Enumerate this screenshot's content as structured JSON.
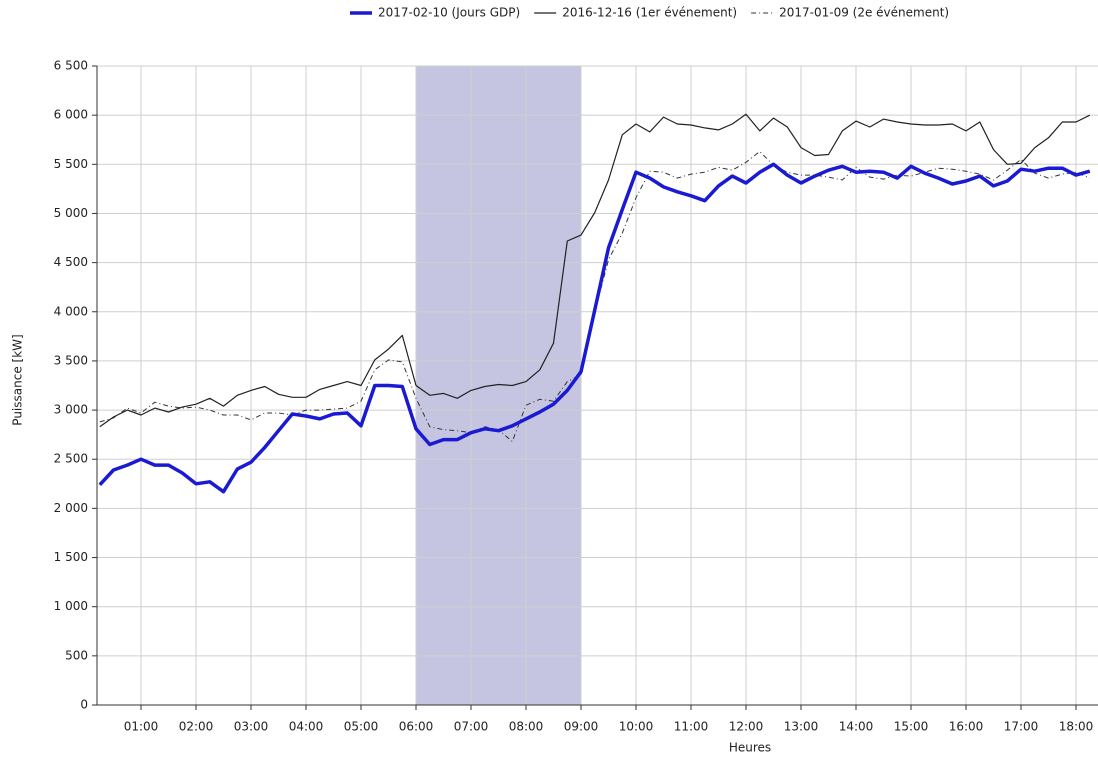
{
  "chart_data": {
    "type": "line",
    "x_label": "Heures",
    "y_label": "Puissance [kW]",
    "x": [
      0.25,
      0.5,
      0.75,
      1,
      1.25,
      1.5,
      1.75,
      2,
      2.25,
      2.5,
      2.75,
      3,
      3.25,
      3.5,
      3.75,
      4,
      4.25,
      4.5,
      4.75,
      5,
      5.25,
      5.5,
      5.75,
      6,
      6.25,
      6.5,
      6.75,
      7,
      7.25,
      7.5,
      7.75,
      8,
      8.25,
      8.5,
      8.75,
      9,
      9.25,
      9.5,
      9.75,
      10,
      10.25,
      10.5,
      10.75,
      11,
      11.25,
      11.5,
      11.75,
      12,
      12.25,
      12.5,
      12.75,
      13,
      13.25,
      13.5,
      13.75,
      14,
      14.25,
      14.5,
      14.75,
      15,
      15.25,
      15.5,
      15.75,
      16,
      16.25,
      16.5,
      16.75,
      17,
      17.25,
      17.5,
      17.75,
      18,
      18.25
    ],
    "series": [
      {
        "name": "2017-02-10 (Jours GDP)",
        "color": "#1a1ad2",
        "width": 3.5,
        "dash": "solid",
        "values": [
          2240,
          2390,
          2440,
          2500,
          2440,
          2440,
          2360,
          2250,
          2270,
          2170,
          2400,
          2470,
          2620,
          2790,
          2960,
          2940,
          2910,
          2960,
          2970,
          2840,
          3250,
          3250,
          3240,
          2810,
          2650,
          2700,
          2700,
          2770,
          2810,
          2790,
          2840,
          2910,
          2980,
          3060,
          3200,
          3390,
          4020,
          4650,
          5040,
          5420,
          5360,
          5270,
          5220,
          5180,
          5130,
          5280,
          5380,
          5310,
          5420,
          5500,
          5390,
          5310,
          5380,
          5440,
          5480,
          5420,
          5430,
          5420,
          5360,
          5480,
          5410,
          5360,
          5300,
          5330,
          5380,
          5280,
          5330,
          5450,
          5430,
          5460,
          5460,
          5390,
          5430
        ]
      },
      {
        "name": "2016-12-16 (1er événement)",
        "color": "#222222",
        "width": 1.2,
        "dash": "solid",
        "values": [
          2830,
          2930,
          3000,
          2950,
          3020,
          2980,
          3030,
          3060,
          3120,
          3040,
          3150,
          3200,
          3240,
          3160,
          3130,
          3130,
          3210,
          3250,
          3290,
          3250,
          3510,
          3620,
          3760,
          3250,
          3150,
          3170,
          3120,
          3200,
          3240,
          3260,
          3250,
          3290,
          3410,
          3680,
          4720,
          4780,
          5010,
          5340,
          5800,
          5910,
          5830,
          5980,
          5910,
          5900,
          5870,
          5850,
          5910,
          6010,
          5840,
          5970,
          5880,
          5670,
          5590,
          5600,
          5840,
          5940,
          5880,
          5960,
          5930,
          5910,
          5900,
          5900,
          5910,
          5840,
          5930,
          5650,
          5500,
          5510,
          5670,
          5770,
          5930,
          5930,
          6000
        ]
      },
      {
        "name": "2017-01-09 (2e événement)",
        "color": "#333333",
        "width": 1,
        "dash": "dashdot",
        "values": [
          2880,
          2920,
          3020,
          2970,
          3080,
          3040,
          3020,
          3030,
          3000,
          2950,
          2950,
          2900,
          2970,
          2970,
          2950,
          3000,
          3000,
          3010,
          3020,
          3090,
          3410,
          3510,
          3490,
          3120,
          2830,
          2800,
          2790,
          2770,
          2830,
          2800,
          2680,
          3050,
          3110,
          3090,
          3290,
          3360,
          4000,
          4530,
          4800,
          5160,
          5430,
          5420,
          5360,
          5400,
          5420,
          5470,
          5440,
          5520,
          5630,
          5490,
          5420,
          5390,
          5390,
          5370,
          5340,
          5470,
          5370,
          5350,
          5390,
          5380,
          5420,
          5460,
          5450,
          5430,
          5400,
          5340,
          5440,
          5550,
          5410,
          5360,
          5400,
          5420,
          5360
        ]
      }
    ],
    "highlight": {
      "range": [
        6,
        9
      ],
      "color": "#a6a6d2"
    },
    "xlim": [
      0.2,
      18.4
    ],
    "xticks": [
      {
        "value": 1,
        "label": "01:00"
      },
      {
        "value": 2,
        "label": "02:00"
      },
      {
        "value": 3,
        "label": "03:00"
      },
      {
        "value": 4,
        "label": "04:00"
      },
      {
        "value": 5,
        "label": "05:00"
      },
      {
        "value": 6,
        "label": "06:00"
      },
      {
        "value": 7,
        "label": "07:00"
      },
      {
        "value": 8,
        "label": "08:00"
      },
      {
        "value": 9,
        "label": "09:00"
      },
      {
        "value": 10,
        "label": "10:00"
      },
      {
        "value": 11,
        "label": "11:00"
      },
      {
        "value": 12,
        "label": "12:00"
      },
      {
        "value": 13,
        "label": "13:00"
      },
      {
        "value": 14,
        "label": "14:00"
      },
      {
        "value": 15,
        "label": "15:00"
      },
      {
        "value": 16,
        "label": "16:00"
      },
      {
        "value": 17,
        "label": "17:00"
      },
      {
        "value": 18,
        "label": "18:00"
      }
    ],
    "ylim": [
      0,
      6500
    ],
    "yticks": [
      0,
      500,
      {
        "value": 1000,
        "label": "1 000"
      },
      {
        "value": 1500,
        "label": "1 500"
      },
      {
        "value": 2000,
        "label": "2 000"
      },
      {
        "value": 2500,
        "label": "2 500"
      },
      {
        "value": 3000,
        "label": "3 000"
      },
      {
        "value": 3500,
        "label": "3 500"
      },
      {
        "value": 4000,
        "label": "4 000"
      },
      {
        "value": 4500,
        "label": "4 500"
      },
      {
        "value": 5000,
        "label": "5 000"
      },
      {
        "value": 5500,
        "label": "5 500"
      },
      {
        "value": 6000,
        "label": "6 000"
      },
      {
        "value": 6500,
        "label": "6 500"
      }
    ],
    "grid": true,
    "legend": "top"
  }
}
